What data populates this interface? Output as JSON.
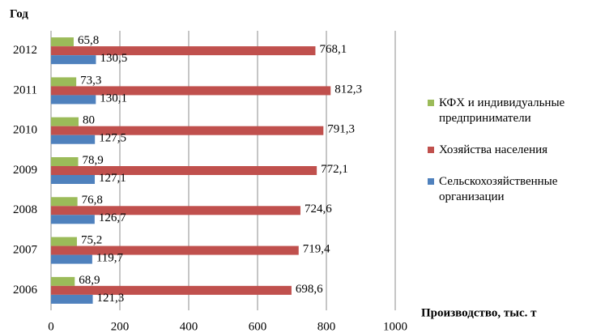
{
  "chart_data": {
    "type": "hbar",
    "y_axis_title": "Год",
    "x_axis_title": "Производство, тыс. т",
    "categories": [
      "2006",
      "2007",
      "2008",
      "2009",
      "2010",
      "2011",
      "2012"
    ],
    "series": [
      {
        "name": "КФХ и индивидуальные предприниматели",
        "color": "#9bbb59",
        "values": [
          68.9,
          75.2,
          76.8,
          78.9,
          80,
          73.3,
          65.8
        ],
        "value_labels": [
          "68,9",
          "75,2",
          "76,8",
          "78,9",
          "80",
          "73,3",
          "65,8"
        ]
      },
      {
        "name": "Хозяйства населения",
        "color": "#c0504d",
        "values": [
          698.6,
          719.4,
          724.6,
          772.1,
          791.3,
          812.3,
          768.1
        ],
        "value_labels": [
          "698,6",
          "719,4",
          "724,6",
          "772,1",
          "791,3",
          "812,3",
          "768,1"
        ]
      },
      {
        "name": "Сельскохозяйственные организации",
        "color": "#4f81bd",
        "values": [
          121.3,
          119.7,
          126.7,
          127.1,
          127.5,
          130.1,
          130.5
        ],
        "value_labels": [
          "121,3",
          "119,7",
          "126,7",
          "127,1",
          "127,5",
          "130,1",
          "130,5"
        ]
      }
    ],
    "xlim": [
      0,
      1000
    ],
    "xticks": [
      0,
      200,
      400,
      600,
      800,
      1000
    ],
    "grid": true
  }
}
